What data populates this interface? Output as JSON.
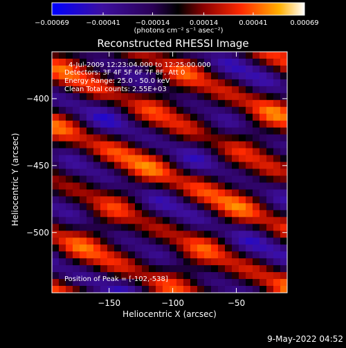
{
  "chart_data": {
    "type": "heatmap",
    "title": "Reconstructed RHESSI Image",
    "xlabel": "Heliocentric X (arcsec)",
    "ylabel": "Heliocentric Y (arcsec)",
    "xlim": [
      -195,
      -10
    ],
    "ylim": [
      -545,
      -365
    ],
    "x_ticks": [
      {
        "value": -150,
        "label": "−150"
      },
      {
        "value": -100,
        "label": "−100"
      },
      {
        "value": -50,
        "label": "−50"
      }
    ],
    "y_ticks": [
      {
        "value": -400,
        "label": "−400"
      },
      {
        "value": -450,
        "label": "−450"
      },
      {
        "value": -500,
        "label": "−500"
      }
    ],
    "colorbar": {
      "range": [
        -0.00069,
        0.00069
      ],
      "ticks": [
        {
          "value": -0.00069,
          "label": "−0.00069"
        },
        {
          "value": -0.00041,
          "label": "−0.00041"
        },
        {
          "value": -0.00014,
          "label": "−0.00014"
        },
        {
          "value": 0.00014,
          "label": "0.00014"
        },
        {
          "value": 0.00041,
          "label": "0.00041"
        },
        {
          "value": 0.00069,
          "label": "0.00069"
        }
      ],
      "unit": "(photons cm⁻² s⁻¹ asec⁻²)",
      "colors": [
        "#0000ff",
        "#3d0fa0",
        "#2a0055",
        "#000000",
        "#8a0000",
        "#ff2a00",
        "#ffb000",
        "#ffffff"
      ]
    },
    "annotations": {
      "time": "4-Jul-2009 12:23:04.000 to 12:25:00.000",
      "detectors": "Detectors: 3F 4F 5F 6F 7F 8F, Att 0",
      "energy": "Energy Range: 25.0 - 50.0 keV",
      "clean": "Clean     Total counts: 2.55E+03",
      "peak": "Position of Peak = [-102,-538]"
    },
    "grid": false,
    "legend": "colorbar-top"
  },
  "footer": {
    "date": "9-May-2022 04:52"
  }
}
